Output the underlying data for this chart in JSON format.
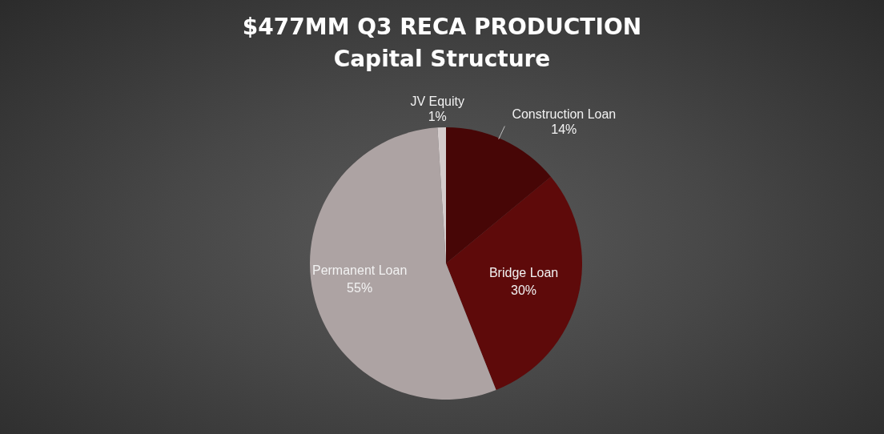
{
  "chart_data": {
    "type": "pie",
    "title": "$477MM Q3 RECA PRODUCTION",
    "subtitle": "Capital Structure",
    "categories": [
      "Construction Loan",
      "Bridge Loan",
      "Permanent Loan",
      "JV Equity"
    ],
    "values": [
      14,
      30,
      55,
      1
    ],
    "value_labels": [
      "14%",
      "30%",
      "55%",
      "1%"
    ],
    "colors": [
      "#470606",
      "#5e0a0a",
      "#ada3a3",
      "#d4cccc"
    ],
    "legend": false
  }
}
